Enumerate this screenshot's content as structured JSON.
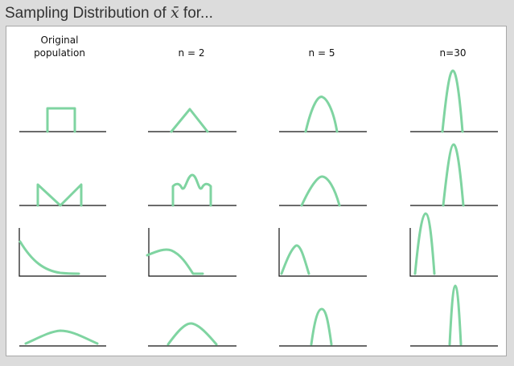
{
  "panel": {
    "title_prefix": "Sampling Distribution of ",
    "title_symbol": "x̄",
    "title_suffix": " for..."
  },
  "columns": [
    {
      "line1": "Original",
      "line2": "population"
    },
    {
      "line1": "",
      "line2": "n = 2"
    },
    {
      "line1": "",
      "line2": "n = 5"
    },
    {
      "line1": "",
      "line2": "n=30"
    }
  ],
  "rows": [
    {
      "population": "uniform",
      "shapes": [
        "rectangle",
        "triangle",
        "bell",
        "narrow-bell"
      ]
    },
    {
      "population": "u-shaped",
      "shapes": [
        "v-shape",
        "bumpy",
        "bell",
        "narrow-bell"
      ]
    },
    {
      "population": "exponential",
      "shapes": [
        "decay",
        "right-skewed",
        "right-skewed",
        "narrow-bell"
      ]
    },
    {
      "population": "normal",
      "shapes": [
        "wide-bell",
        "bell",
        "narrow-bell",
        "narrow-bell"
      ]
    }
  ],
  "colors": {
    "curve": "#7fd4a1",
    "axis": "#111111",
    "frame_bg": "#ffffff",
    "panel_bg": "#dcdcdc"
  }
}
